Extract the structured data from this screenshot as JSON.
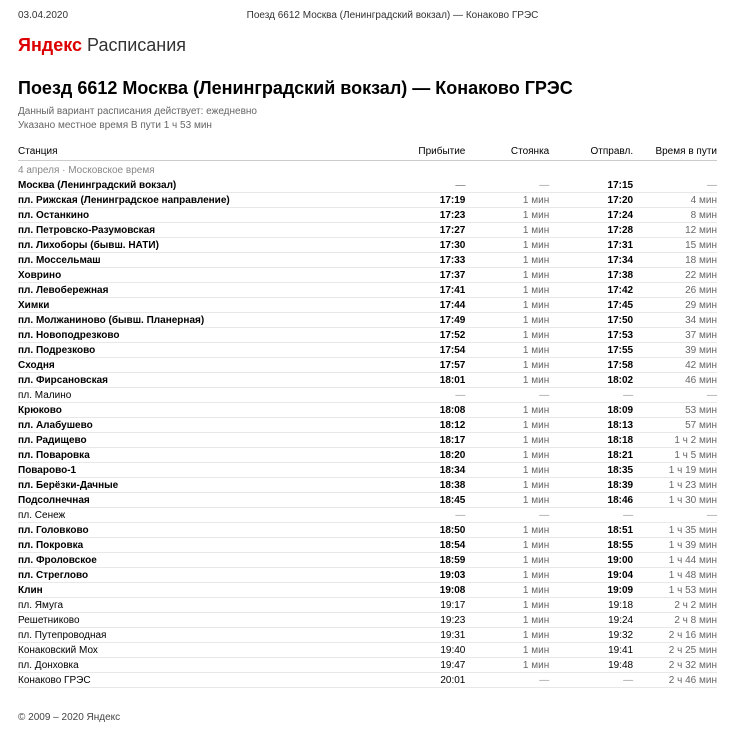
{
  "top": {
    "date": "03.04.2020",
    "header": "Поезд 6612 Москва (Ленинградский вокзал) — Конаково ГРЭС"
  },
  "logo": {
    "brand": "Яндекс",
    "service": " Расписания"
  },
  "title": "Поезд 6612 Москва (Ленинградский вокзал) — Конаково ГРЭС",
  "meta1": "Данный вариант расписания действует: ежедневно",
  "meta2": "Указано местное время   В пути 1 ч 53 мин",
  "columns": {
    "station": "Станция",
    "arrival": "Прибытие",
    "stop": "Стоянка",
    "departure": "Отправл.",
    "travel": "Время в пути"
  },
  "subheader": "4 апреля  ·  Московское время",
  "rows": [
    {
      "s": "Москва (Ленинградский вокзал)",
      "a": "—",
      "st": "—",
      "d": "17:15",
      "t": "—",
      "b": true
    },
    {
      "s": "пл. Рижская (Ленинградское направление)",
      "a": "17:19",
      "st": "1 мин",
      "d": "17:20",
      "t": "4 мин",
      "b": true
    },
    {
      "s": "пл. Останкино",
      "a": "17:23",
      "st": "1 мин",
      "d": "17:24",
      "t": "8 мин",
      "b": true
    },
    {
      "s": "пл. Петровско-Разумовская",
      "a": "17:27",
      "st": "1 мин",
      "d": "17:28",
      "t": "12 мин",
      "b": true
    },
    {
      "s": "пл. Лихоборы (бывш. НАТИ)",
      "a": "17:30",
      "st": "1 мин",
      "d": "17:31",
      "t": "15 мин",
      "b": true
    },
    {
      "s": "пл. Моссельмаш",
      "a": "17:33",
      "st": "1 мин",
      "d": "17:34",
      "t": "18 мин",
      "b": true
    },
    {
      "s": "Ховрино",
      "a": "17:37",
      "st": "1 мин",
      "d": "17:38",
      "t": "22 мин",
      "b": true
    },
    {
      "s": "пл. Левобережная",
      "a": "17:41",
      "st": "1 мин",
      "d": "17:42",
      "t": "26 мин",
      "b": true
    },
    {
      "s": "Химки",
      "a": "17:44",
      "st": "1 мин",
      "d": "17:45",
      "t": "29 мин",
      "b": true
    },
    {
      "s": "пл. Молжаниново (бывш. Планерная)",
      "a": "17:49",
      "st": "1 мин",
      "d": "17:50",
      "t": "34 мин",
      "b": true
    },
    {
      "s": "пл. Новоподрезково",
      "a": "17:52",
      "st": "1 мин",
      "d": "17:53",
      "t": "37 мин",
      "b": true
    },
    {
      "s": "пл. Подрезково",
      "a": "17:54",
      "st": "1 мин",
      "d": "17:55",
      "t": "39 мин",
      "b": true
    },
    {
      "s": "Сходня",
      "a": "17:57",
      "st": "1 мин",
      "d": "17:58",
      "t": "42 мин",
      "b": true
    },
    {
      "s": "пл. Фирсановская",
      "a": "18:01",
      "st": "1 мин",
      "d": "18:02",
      "t": "46 мин",
      "b": true
    },
    {
      "s": "пл. Малино",
      "a": "—",
      "st": "—",
      "d": "—",
      "t": "—",
      "b": false
    },
    {
      "s": "Крюково",
      "a": "18:08",
      "st": "1 мин",
      "d": "18:09",
      "t": "53 мин",
      "b": true
    },
    {
      "s": "пл. Алабушево",
      "a": "18:12",
      "st": "1 мин",
      "d": "18:13",
      "t": "57 мин",
      "b": true
    },
    {
      "s": "пл. Радищево",
      "a": "18:17",
      "st": "1 мин",
      "d": "18:18",
      "t": "1 ч 2 мин",
      "b": true
    },
    {
      "s": "пл. Поваровка",
      "a": "18:20",
      "st": "1 мин",
      "d": "18:21",
      "t": "1 ч 5 мин",
      "b": true
    },
    {
      "s": "Поварово-1",
      "a": "18:34",
      "st": "1 мин",
      "d": "18:35",
      "t": "1 ч 19 мин",
      "b": true
    },
    {
      "s": "пл. Берёзки-Дачные",
      "a": "18:38",
      "st": "1 мин",
      "d": "18:39",
      "t": "1 ч 23 мин",
      "b": true
    },
    {
      "s": "Подсолнечная",
      "a": "18:45",
      "st": "1 мин",
      "d": "18:46",
      "t": "1 ч 30 мин",
      "b": true
    },
    {
      "s": "пл. Сенеж",
      "a": "—",
      "st": "—",
      "d": "—",
      "t": "—",
      "b": false
    },
    {
      "s": "пл. Головково",
      "a": "18:50",
      "st": "1 мин",
      "d": "18:51",
      "t": "1 ч 35 мин",
      "b": true
    },
    {
      "s": "пл. Покровка",
      "a": "18:54",
      "st": "1 мин",
      "d": "18:55",
      "t": "1 ч 39 мин",
      "b": true
    },
    {
      "s": "пл. Фроловское",
      "a": "18:59",
      "st": "1 мин",
      "d": "19:00",
      "t": "1 ч 44 мин",
      "b": true
    },
    {
      "s": "пл. Стреглово",
      "a": "19:03",
      "st": "1 мин",
      "d": "19:04",
      "t": "1 ч 48 мин",
      "b": true
    },
    {
      "s": "Клин",
      "a": "19:08",
      "st": "1 мин",
      "d": "19:09",
      "t": "1 ч 53 мин",
      "b": true
    },
    {
      "s": "пл. Ямуга",
      "a": "19:17",
      "st": "1 мин",
      "d": "19:18",
      "t": "2 ч 2 мин",
      "b": false
    },
    {
      "s": "Решетниково",
      "a": "19:23",
      "st": "1 мин",
      "d": "19:24",
      "t": "2 ч 8 мин",
      "b": false
    },
    {
      "s": "пл. Путепроводная",
      "a": "19:31",
      "st": "1 мин",
      "d": "19:32",
      "t": "2 ч 16 мин",
      "b": false
    },
    {
      "s": "Конаковский Мох",
      "a": "19:40",
      "st": "1 мин",
      "d": "19:41",
      "t": "2 ч 25 мин",
      "b": false
    },
    {
      "s": "пл. Донховка",
      "a": "19:47",
      "st": "1 мин",
      "d": "19:48",
      "t": "2 ч 32 мин",
      "b": false
    },
    {
      "s": "Конаково ГРЭС",
      "a": "20:01",
      "st": "—",
      "d": "—",
      "t": "2 ч 46 мин",
      "b": false
    }
  ],
  "footer": "© 2009 – 2020      Яндекс"
}
